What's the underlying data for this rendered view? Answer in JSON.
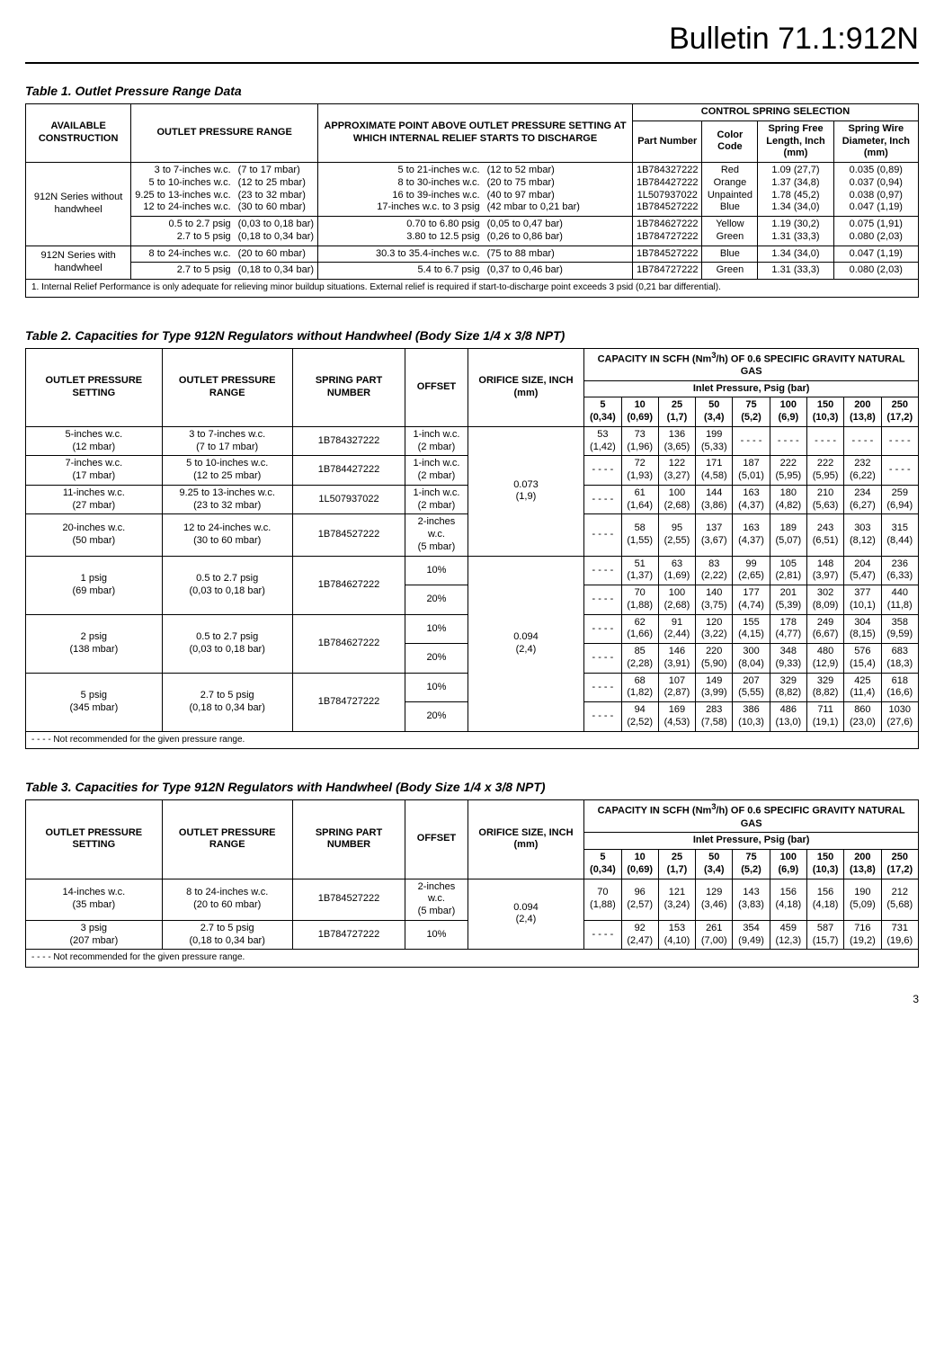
{
  "header": "Bulletin 71.1:912N",
  "page_number": "3",
  "table1": {
    "title_label": "Table 1.",
    "title_rest": "Outlet Pressure Range Data",
    "footnote": "1.  Internal Relief Performance is only adequate for relieving minor buildup situations.  External relief is required if start-to-discharge point exceeds 3 psid (0,21 bar differential).",
    "head": {
      "available": "AVAILABLE CONSTRUCTION",
      "range": "OUTLET PRESSURE RANGE",
      "approx": "APPROXIMATE POINT ABOVE OUTLET PRESSURE SETTING AT WHICH INTERNAL RELIEF STARTS TO DISCHARGE",
      "control": "CONTROL SPRING SELECTION",
      "part": "Part Number",
      "color": "Color Code",
      "len": "Spring Free Length, Inch (mm)",
      "dia": "Spring Wire Diameter, Inch (mm)"
    },
    "rows": [
      {
        "avail": "912N Series without handwheel",
        "avail_rowspan": "2",
        "ranges_left": [
          "3 to 7-inches w.c.",
          "5 to 10-inches w.c.",
          "9.25 to 13-inches w.c.",
          "12 to 24-inches w.c."
        ],
        "ranges_right": [
          "(7 to 17 mbar)",
          "(12 to 25 mbar)",
          "(23 to 32 mbar)",
          "(30 to 60 mbar)"
        ],
        "approx_left": [
          "5 to 21-inches w.c.",
          "8 to 30-inches w.c.",
          "16 to 39-inches w.c.",
          "17-inches w.c. to 3 psig"
        ],
        "approx_right": [
          "(12 to 52 mbar)",
          "(20 to 75 mbar)",
          "(40 to 97 mbar)",
          "(42 mbar to 0,21 bar)"
        ],
        "parts": [
          "1B784327222",
          "1B784427222",
          "1L507937022",
          "1B784527222"
        ],
        "colors": [
          "Red",
          "Orange",
          "Unpainted",
          "Blue"
        ],
        "lens": [
          "1.09 (27,7)",
          "1.37 (34,8)",
          "1.78 (45,2)",
          "1.34 (34,0)"
        ],
        "dias": [
          "0.035 (0,89)",
          "0.037 (0,94)",
          "0.038 (0,97)",
          "0.047 (1,19)"
        ]
      },
      {
        "ranges_left": [
          "0.5 to 2.7 psig",
          "2.7 to 5 psig"
        ],
        "ranges_right": [
          "(0,03 to 0,18 bar)",
          "(0,18 to 0,34 bar)"
        ],
        "approx_left": [
          "0.70 to 6.80 psig",
          "3.80 to 12.5 psig"
        ],
        "approx_right": [
          "(0,05 to 0,47 bar)",
          "(0,26 to 0,86 bar)"
        ],
        "parts": [
          "1B784627222",
          "1B784727222"
        ],
        "colors": [
          "Yellow",
          "Green"
        ],
        "lens": [
          "1.19 (30,2)",
          "1.31 (33,3)"
        ],
        "dias": [
          "0.075 (1,91)",
          "0.080 (2,03)"
        ]
      },
      {
        "avail": "912N Series with handwheel",
        "avail_rowspan": "2",
        "ranges_left": [
          "8 to 24-inches w.c."
        ],
        "ranges_right": [
          "(20 to 60 mbar)"
        ],
        "approx_left": [
          "30.3 to 35.4-inches w.c."
        ],
        "approx_right": [
          "(75 to 88 mbar)"
        ],
        "parts": [
          "1B784527222"
        ],
        "colors": [
          "Blue"
        ],
        "lens": [
          "1.34 (34,0)"
        ],
        "dias": [
          "0.047 (1,19)"
        ]
      },
      {
        "ranges_left": [
          "2.7 to 5 psig"
        ],
        "ranges_right": [
          "(0,18 to 0,34 bar)"
        ],
        "approx_left": [
          "5.4 to 6.7 psig"
        ],
        "approx_right": [
          "(0,37 to 0,46 bar)"
        ],
        "parts": [
          "1B784727222"
        ],
        "colors": [
          "Green"
        ],
        "lens": [
          "1.31 (33,3)"
        ],
        "dias": [
          "0.080 (2,03)"
        ]
      }
    ]
  },
  "table2": {
    "title_label": "Table 2.",
    "title_rest": "Capacities for Type 912N Regulators without Handwheel (Body Size 1/4 x 3/8 NPT)",
    "footnote": "- - - -  Not recommended for the given pressure range.",
    "head": {
      "setting": "OUTLET PRESSURE SETTING",
      "range": "OUTLET PRESSURE RANGE",
      "part": "SPRING PART NUMBER",
      "offset": "OFFSET",
      "orifice": "ORIFICE SIZE, INCH (mm)",
      "cap_top_a": "CAPACITY IN SCFH (Nm",
      "cap_top_b": "3",
      "cap_top_c": "/h) OF 0.6 SPECIFIC GRAVITY NATURAL GAS",
      "inlet": "Inlet Pressure, Psig (bar)",
      "cols": [
        {
          "a": "5",
          "b": "(0,34)"
        },
        {
          "a": "10",
          "b": "(0,69)"
        },
        {
          "a": "25",
          "b": "(1,7)"
        },
        {
          "a": "50",
          "b": "(3,4)"
        },
        {
          "a": "75",
          "b": "(5,2)"
        },
        {
          "a": "100",
          "b": "(6,9)"
        },
        {
          "a": "150",
          "b": "(10,3)"
        },
        {
          "a": "200",
          "b": "(13,8)"
        },
        {
          "a": "250",
          "b": "(17,2)"
        }
      ]
    },
    "orifice_a": "0.073 (1,9)",
    "orifice_b": "0.094 (2,4)",
    "rows": [
      {
        "setting": "5-inches w.c. (12 mbar)",
        "range": "3 to 7-inches w.c. (7 to 17 mbar)",
        "part": "1B784327222",
        "offset": "1-inch w.c. (2 mbar)",
        "cells": [
          [
            "53",
            "(1,42)"
          ],
          [
            "73",
            "(1,96)"
          ],
          [
            "136",
            "(3,65)"
          ],
          [
            "199",
            "(5,33)"
          ],
          [
            "- - - -",
            ""
          ],
          [
            "- - - -",
            ""
          ],
          [
            "- - - -",
            ""
          ],
          [
            "- - - -",
            ""
          ],
          [
            "- - - -",
            ""
          ]
        ]
      },
      {
        "setting": "7-inches w.c. (17 mbar)",
        "range": "5 to 10-inches w.c. (12 to 25 mbar)",
        "part": "1B784427222",
        "offset": "1-inch w.c. (2 mbar)",
        "cells": [
          [
            "- - - -",
            ""
          ],
          [
            "72",
            "(1,93)"
          ],
          [
            "122",
            "(3,27)"
          ],
          [
            "171",
            "(4,58)"
          ],
          [
            "187",
            "(5,01)"
          ],
          [
            "222",
            "(5,95)"
          ],
          [
            "222",
            "(5,95)"
          ],
          [
            "232",
            "(6,22)"
          ],
          [
            "- - - -",
            ""
          ]
        ]
      },
      {
        "setting": "11-inches w.c. (27 mbar)",
        "range": "9.25 to 13-inches w.c. (23 to 32 mbar)",
        "part": "1L507937022",
        "offset": "1-inch w.c. (2 mbar)",
        "cells": [
          [
            "- - - -",
            ""
          ],
          [
            "61",
            "(1,64)"
          ],
          [
            "100",
            "(2,68)"
          ],
          [
            "144",
            "(3,86)"
          ],
          [
            "163",
            "(4,37)"
          ],
          [
            "180",
            "(4,82)"
          ],
          [
            "210",
            "(5,63)"
          ],
          [
            "234",
            "(6,27)"
          ],
          [
            "259",
            "(6,94)"
          ]
        ]
      },
      {
        "setting": "20-inches w.c. (50 mbar)",
        "range": "12 to 24-inches w.c. (30 to 60 mbar)",
        "part": "1B784527222",
        "offset": "2-inches w.c. (5 mbar)",
        "cells": [
          [
            "- - - -",
            ""
          ],
          [
            "58",
            "(1,55)"
          ],
          [
            "95",
            "(2,55)"
          ],
          [
            "137",
            "(3,67)"
          ],
          [
            "163",
            "(4,37)"
          ],
          [
            "189",
            "(5,07)"
          ],
          [
            "243",
            "(6,51)"
          ],
          [
            "303",
            "(8,12)"
          ],
          [
            "315",
            "(8,44)"
          ]
        ]
      },
      {
        "setting": "1 psig (69 mbar)",
        "range": "0.5 to 2.7 psig (0,03 to 0,18 bar)",
        "part": "1B784627222",
        "offset": "10%",
        "cells": [
          [
            "- - - -",
            ""
          ],
          [
            "51",
            "(1,37)"
          ],
          [
            "63",
            "(1,69)"
          ],
          [
            "83",
            "(2,22)"
          ],
          [
            "99",
            "(2,65)"
          ],
          [
            "105",
            "(2,81)"
          ],
          [
            "148",
            "(3,97)"
          ],
          [
            "204",
            "(5,47)"
          ],
          [
            "236",
            "(6,33)"
          ]
        ]
      },
      {
        "offset": "20%",
        "cells": [
          [
            "- - - -",
            ""
          ],
          [
            "70",
            "(1,88)"
          ],
          [
            "100",
            "(2,68)"
          ],
          [
            "140",
            "(3,75)"
          ],
          [
            "177",
            "(4,74)"
          ],
          [
            "201",
            "(5,39)"
          ],
          [
            "302",
            "(8,09)"
          ],
          [
            "377",
            "(10,1)"
          ],
          [
            "440",
            "(11,8)"
          ]
        ]
      },
      {
        "setting": "2 psig (138 mbar)",
        "range": "0.5 to 2.7 psig (0,03 to 0,18 bar)",
        "part": "1B784627222",
        "offset": "10%",
        "cells": [
          [
            "- - - -",
            ""
          ],
          [
            "62",
            "(1,66)"
          ],
          [
            "91",
            "(2,44)"
          ],
          [
            "120",
            "(3,22)"
          ],
          [
            "155",
            "(4,15)"
          ],
          [
            "178",
            "(4,77)"
          ],
          [
            "249",
            "(6,67)"
          ],
          [
            "304",
            "(8,15)"
          ],
          [
            "358",
            "(9,59)"
          ]
        ]
      },
      {
        "offset": "20%",
        "cells": [
          [
            "- - - -",
            ""
          ],
          [
            "85",
            "(2,28)"
          ],
          [
            "146",
            "(3,91)"
          ],
          [
            "220",
            "(5,90)"
          ],
          [
            "300",
            "(8,04)"
          ],
          [
            "348",
            "(9,33)"
          ],
          [
            "480",
            "(12,9)"
          ],
          [
            "576",
            "(15,4)"
          ],
          [
            "683",
            "(18,3)"
          ]
        ]
      },
      {
        "setting": "5 psig (345 mbar)",
        "range": "2.7 to 5 psig (0,18 to 0,34 bar)",
        "part": "1B784727222",
        "offset": "10%",
        "cells": [
          [
            "- - - -",
            ""
          ],
          [
            "68",
            "(1,82)"
          ],
          [
            "107",
            "(2,87)"
          ],
          [
            "149",
            "(3,99)"
          ],
          [
            "207",
            "(5,55)"
          ],
          [
            "329",
            "(8,82)"
          ],
          [
            "329",
            "(8,82)"
          ],
          [
            "425",
            "(11,4)"
          ],
          [
            "618",
            "(16,6)"
          ]
        ]
      },
      {
        "offset": "20%",
        "cells": [
          [
            "- - - -",
            ""
          ],
          [
            "94",
            "(2,52)"
          ],
          [
            "169",
            "(4,53)"
          ],
          [
            "283",
            "(7,58)"
          ],
          [
            "386",
            "(10,3)"
          ],
          [
            "486",
            "(13,0)"
          ],
          [
            "711",
            "(19,1)"
          ],
          [
            "860",
            "(23,0)"
          ],
          [
            "1030",
            "(27,6)"
          ]
        ]
      }
    ]
  },
  "table3": {
    "title_label": "Table 3.",
    "title_rest": "Capacities for Type 912N Regulators with Handwheel (Body Size 1/4 x 3/8 NPT)",
    "footnote": "- - - -  Not recommended for the given pressure range.",
    "head": {
      "setting": "OUTLET PRESSURE SETTING",
      "range": "OUTLET PRESSURE RANGE",
      "part": "SPRING PART NUMBER",
      "offset": "OFFSET",
      "orifice": "ORIFICE SIZE, INCH (mm)",
      "cap_top_a": "CAPACITY IN SCFH (Nm",
      "cap_top_b": "3",
      "cap_top_c": "/h) OF 0.6 SPECIFIC GRAVITY NATURAL GAS",
      "inlet": "Inlet Pressure, Psig (bar)",
      "cols": [
        {
          "a": "5",
          "b": "(0,34)"
        },
        {
          "a": "10",
          "b": "(0,69)"
        },
        {
          "a": "25",
          "b": "(1,7)"
        },
        {
          "a": "50",
          "b": "(3,4)"
        },
        {
          "a": "75",
          "b": "(5,2)"
        },
        {
          "a": "100",
          "b": "(6,9)"
        },
        {
          "a": "150",
          "b": "(10,3)"
        },
        {
          "a": "200",
          "b": "(13,8)"
        },
        {
          "a": "250",
          "b": "(17,2)"
        }
      ]
    },
    "orifice": "0.094 (2,4)",
    "rows": [
      {
        "setting": "14-inches w.c. (35 mbar)",
        "range": "8 to 24-inches w.c. (20 to 60 mbar)",
        "part": "1B784527222",
        "offset": "2-inches w.c. (5 mbar)",
        "cells": [
          [
            "70",
            "(1,88)"
          ],
          [
            "96",
            "(2,57)"
          ],
          [
            "121",
            "(3,24)"
          ],
          [
            "129",
            "(3,46)"
          ],
          [
            "143",
            "(3,83)"
          ],
          [
            "156",
            "(4,18)"
          ],
          [
            "156",
            "(4,18)"
          ],
          [
            "190",
            "(5,09)"
          ],
          [
            "212",
            "(5,68)"
          ]
        ]
      },
      {
        "setting": "3 psig (207 mbar)",
        "range": "2.7 to 5 psig (0,18 to 0,34 bar)",
        "part": "1B784727222",
        "offset": "10%",
        "cells": [
          [
            "- - - -",
            ""
          ],
          [
            "92",
            "(2,47)"
          ],
          [
            "153",
            "(4,10)"
          ],
          [
            "261",
            "(7,00)"
          ],
          [
            "354",
            "(9,49)"
          ],
          [
            "459",
            "(12,3)"
          ],
          [
            "587",
            "(15,7)"
          ],
          [
            "716",
            "(19,2)"
          ],
          [
            "731",
            "(19,6)"
          ]
        ]
      }
    ]
  }
}
